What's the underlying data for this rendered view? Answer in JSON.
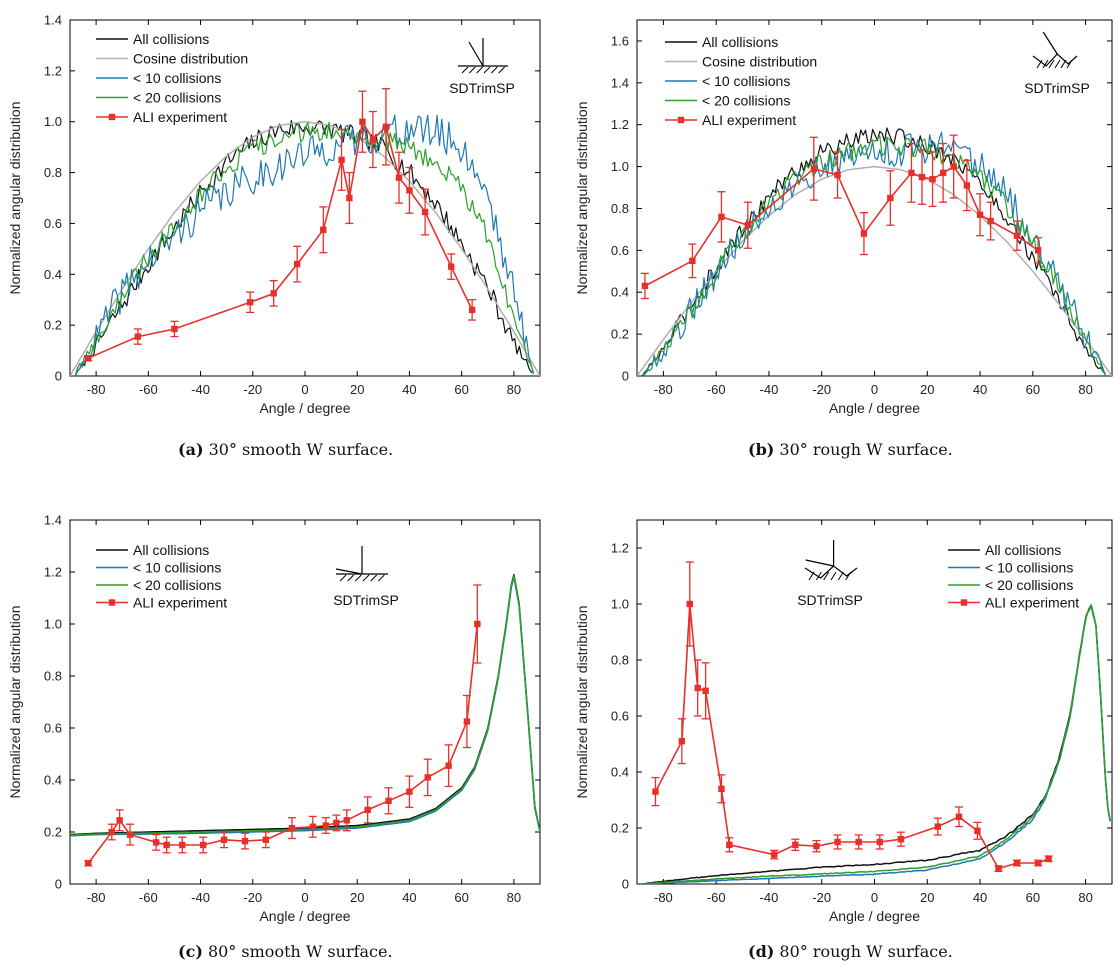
{
  "chart_data": [
    {
      "type": "line",
      "xlabel": "Angle / degree",
      "ylabel": "Normalized angular distribution",
      "xlim": [
        -90,
        90
      ],
      "ylim": [
        0,
        1.4
      ],
      "xticks": [
        -80,
        -60,
        -40,
        -20,
        0,
        20,
        40,
        60,
        80
      ],
      "yticks": [
        0,
        0.2,
        0.4,
        0.6,
        0.8,
        1.0,
        1.2,
        1.4
      ],
      "ytick_labels": [
        "0",
        "0.2",
        "0.4",
        "0.6",
        "0.8",
        "1.0",
        "1.2",
        "1.4"
      ],
      "legend_position": "top-left",
      "sim_label": "SDTrimSP",
      "caption": {
        "letter": "(a)",
        "text": " 30° smooth W surface."
      },
      "series": [
        {
          "name": "All collisions",
          "color": "#111111",
          "noise": 0.04,
          "x": [
            -88,
            -80,
            -70,
            -60,
            -50,
            -40,
            -30,
            -20,
            -10,
            0,
            10,
            20,
            30,
            40,
            50,
            60,
            70,
            80,
            88
          ],
          "y": [
            0.0,
            0.12,
            0.28,
            0.44,
            0.58,
            0.72,
            0.84,
            0.92,
            0.97,
            0.98,
            0.97,
            0.94,
            0.9,
            0.8,
            0.68,
            0.52,
            0.35,
            0.13,
            0.0
          ]
        },
        {
          "name": "Cosine distribution",
          "color": "#b0b0b0",
          "noise": 0,
          "x": [
            -90,
            -80,
            -70,
            -60,
            -50,
            -40,
            -30,
            -20,
            -10,
            0,
            10,
            20,
            30,
            40,
            50,
            60,
            70,
            80,
            90
          ],
          "y": [
            0.0,
            0.174,
            0.342,
            0.5,
            0.643,
            0.766,
            0.866,
            0.94,
            0.985,
            1.0,
            0.985,
            0.94,
            0.866,
            0.766,
            0.643,
            0.5,
            0.342,
            0.174,
            0.0
          ]
        },
        {
          "name": "< 10 collisions",
          "color": "#1f78b4",
          "noise": 0.07,
          "x": [
            -88,
            -80,
            -70,
            -60,
            -50,
            -40,
            -30,
            -20,
            -10,
            0,
            10,
            20,
            30,
            40,
            50,
            60,
            70,
            80,
            88
          ],
          "y": [
            0.0,
            0.15,
            0.33,
            0.45,
            0.55,
            0.65,
            0.72,
            0.78,
            0.83,
            0.87,
            0.9,
            0.93,
            0.95,
            0.97,
            0.96,
            0.9,
            0.72,
            0.32,
            0.0
          ]
        },
        {
          "name": "< 20 collisions",
          "color": "#2ca02c",
          "noise": 0.04,
          "x": [
            -88,
            -80,
            -70,
            -60,
            -50,
            -40,
            -30,
            -20,
            -10,
            0,
            10,
            20,
            30,
            40,
            50,
            60,
            70,
            80,
            88
          ],
          "y": [
            0.0,
            0.14,
            0.32,
            0.47,
            0.6,
            0.72,
            0.82,
            0.89,
            0.93,
            0.96,
            0.96,
            0.95,
            0.93,
            0.9,
            0.84,
            0.74,
            0.55,
            0.22,
            0.0
          ]
        },
        {
          "name": "ALI experiment",
          "color": "#e8302a",
          "x": [
            -83,
            -64,
            -50,
            -21,
            -12,
            -3,
            7,
            14,
            17,
            22,
            26,
            31,
            36,
            40,
            46,
            56,
            64
          ],
          "y": [
            0.07,
            0.155,
            0.185,
            0.29,
            0.325,
            0.44,
            0.575,
            0.85,
            0.7,
            1.0,
            0.93,
            0.98,
            0.78,
            0.73,
            0.645,
            0.43,
            0.26
          ],
          "err": [
            0.01,
            0.03,
            0.03,
            0.04,
            0.05,
            0.07,
            0.09,
            0.12,
            0.1,
            0.12,
            0.11,
            0.15,
            0.1,
            0.09,
            0.09,
            0.05,
            0.04
          ]
        }
      ]
    },
    {
      "type": "line",
      "xlabel": "Angle / degree",
      "ylabel": "Normalized angular distribution",
      "xlim": [
        -90,
        90
      ],
      "ylim": [
        0,
        1.7
      ],
      "xticks": [
        -80,
        -60,
        -40,
        -20,
        0,
        20,
        40,
        60,
        80
      ],
      "yticks": [
        0,
        0.2,
        0.4,
        0.6,
        0.8,
        1.0,
        1.2,
        1.4,
        1.6
      ],
      "ytick_labels": [
        "0",
        "0.2",
        "0.4",
        "0.6",
        "0.8",
        "1.0",
        "1.2",
        "1.4",
        "1.6"
      ],
      "legend_position": "top-left",
      "sim_label": "SDTrimSP",
      "caption": {
        "letter": "(b)",
        "text": " 30° rough W surface."
      },
      "series": [
        {
          "name": "All collisions",
          "color": "#111111",
          "noise": 0.04,
          "x": [
            -88,
            -80,
            -70,
            -60,
            -50,
            -40,
            -30,
            -20,
            -10,
            0,
            10,
            20,
            30,
            40,
            50,
            60,
            70,
            80,
            88
          ],
          "y": [
            0.0,
            0.13,
            0.33,
            0.52,
            0.7,
            0.86,
            0.98,
            1.07,
            1.12,
            1.15,
            1.14,
            1.1,
            1.04,
            0.92,
            0.76,
            0.56,
            0.36,
            0.12,
            0.0
          ]
        },
        {
          "name": "Cosine distribution",
          "color": "#b0b0b0",
          "noise": 0,
          "x": [
            -90,
            -80,
            -70,
            -60,
            -50,
            -40,
            -30,
            -20,
            -10,
            0,
            10,
            20,
            30,
            40,
            50,
            60,
            70,
            80,
            90
          ],
          "y": [
            0.0,
            0.174,
            0.342,
            0.5,
            0.643,
            0.766,
            0.866,
            0.94,
            0.985,
            1.0,
            0.985,
            0.94,
            0.866,
            0.766,
            0.643,
            0.5,
            0.342,
            0.174,
            0.0
          ]
        },
        {
          "name": "< 10 collisions",
          "color": "#1f78b4",
          "noise": 0.08,
          "x": [
            -88,
            -80,
            -70,
            -60,
            -50,
            -40,
            -30,
            -20,
            -10,
            0,
            10,
            20,
            30,
            40,
            50,
            60,
            70,
            80,
            88
          ],
          "y": [
            0.0,
            0.12,
            0.3,
            0.5,
            0.68,
            0.82,
            0.92,
            1.0,
            1.04,
            1.07,
            1.08,
            1.09,
            1.1,
            1.0,
            0.86,
            0.66,
            0.44,
            0.18,
            0.0
          ]
        },
        {
          "name": "< 20 collisions",
          "color": "#2ca02c",
          "noise": 0.05,
          "x": [
            -88,
            -80,
            -70,
            -60,
            -50,
            -40,
            -30,
            -20,
            -10,
            0,
            10,
            20,
            30,
            40,
            50,
            60,
            70,
            80,
            88
          ],
          "y": [
            0.0,
            0.12,
            0.31,
            0.5,
            0.68,
            0.83,
            0.94,
            1.02,
            1.07,
            1.1,
            1.1,
            1.08,
            1.05,
            0.96,
            0.82,
            0.62,
            0.42,
            0.16,
            0.0
          ]
        },
        {
          "name": "ALI experiment",
          "color": "#e8302a",
          "x": [
            -87,
            -69,
            -58,
            -48,
            -23,
            -14,
            -4,
            6,
            14,
            18,
            22,
            26,
            30,
            35,
            40,
            44,
            54,
            62
          ],
          "y": [
            0.43,
            0.55,
            0.76,
            0.72,
            0.99,
            0.96,
            0.68,
            0.85,
            0.97,
            0.95,
            0.94,
            0.97,
            1.0,
            0.91,
            0.77,
            0.74,
            0.67,
            0.6
          ],
          "err": [
            0.06,
            0.08,
            0.12,
            0.11,
            0.15,
            0.11,
            0.1,
            0.13,
            0.14,
            0.13,
            0.13,
            0.14,
            0.15,
            0.12,
            0.1,
            0.09,
            0.07,
            0.06
          ]
        }
      ]
    },
    {
      "type": "line",
      "xlabel": "Angle / degree",
      "ylabel": "Normalized angular distribution",
      "xlim": [
        -90,
        90
      ],
      "ylim": [
        0,
        1.4
      ],
      "xticks": [
        -80,
        -60,
        -40,
        -20,
        0,
        20,
        40,
        60,
        80
      ],
      "yticks": [
        0,
        0.2,
        0.4,
        0.6,
        0.8,
        1.0,
        1.2,
        1.4
      ],
      "ytick_labels": [
        "0",
        "0.2",
        "0.4",
        "0.6",
        "0.8",
        "1.0",
        "1.2",
        "1.4"
      ],
      "legend_position": "top-left",
      "sim_label": "SDTrimSP",
      "caption": {
        "letter": "(c)",
        "text": " 80° smooth W surface."
      },
      "series": [
        {
          "name": "All collisions",
          "color": "#111111",
          "noise": 0,
          "x": [
            -90,
            -80,
            -60,
            -40,
            -20,
            0,
            20,
            40,
            50,
            60,
            65,
            70,
            74,
            77,
            79,
            80,
            82,
            85,
            88,
            90
          ],
          "y": [
            0.19,
            0.195,
            0.2,
            0.205,
            0.21,
            0.215,
            0.225,
            0.25,
            0.29,
            0.37,
            0.45,
            0.6,
            0.8,
            1.0,
            1.15,
            1.19,
            1.08,
            0.7,
            0.3,
            0.2
          ]
        },
        {
          "name": "< 10 collisions",
          "color": "#1f78b4",
          "noise": 0,
          "x": [
            -90,
            -80,
            -60,
            -40,
            -20,
            0,
            20,
            40,
            50,
            60,
            65,
            70,
            74,
            77,
            79,
            80,
            82,
            85,
            88,
            90
          ],
          "y": [
            0.185,
            0.19,
            0.192,
            0.195,
            0.2,
            0.205,
            0.215,
            0.24,
            0.28,
            0.36,
            0.44,
            0.59,
            0.79,
            0.99,
            1.14,
            1.18,
            1.07,
            0.69,
            0.29,
            0.2
          ]
        },
        {
          "name": "< 20 collisions",
          "color": "#2ca02c",
          "noise": 0,
          "x": [
            -90,
            -80,
            -60,
            -40,
            -20,
            0,
            20,
            40,
            50,
            60,
            65,
            70,
            74,
            77,
            79,
            80,
            82,
            85,
            88,
            90
          ],
          "y": [
            0.188,
            0.192,
            0.196,
            0.2,
            0.205,
            0.21,
            0.22,
            0.245,
            0.285,
            0.365,
            0.445,
            0.595,
            0.795,
            0.995,
            1.145,
            1.185,
            1.075,
            0.695,
            0.295,
            0.2
          ]
        },
        {
          "name": "ALI experiment",
          "color": "#e8302a",
          "x": [
            -83,
            -74,
            -71,
            -67,
            -57,
            -53,
            -47,
            -39,
            -31,
            -23,
            -15,
            -5,
            3,
            8,
            12,
            16,
            24,
            32,
            40,
            47,
            55,
            62,
            66
          ],
          "y": [
            0.08,
            0.2,
            0.245,
            0.19,
            0.16,
            0.15,
            0.15,
            0.15,
            0.17,
            0.165,
            0.17,
            0.215,
            0.22,
            0.225,
            0.235,
            0.245,
            0.285,
            0.32,
            0.355,
            0.41,
            0.455,
            0.625,
            1.0
          ],
          "err": [
            0.01,
            0.03,
            0.04,
            0.04,
            0.03,
            0.03,
            0.03,
            0.03,
            0.03,
            0.03,
            0.03,
            0.04,
            0.04,
            0.03,
            0.03,
            0.04,
            0.05,
            0.05,
            0.06,
            0.07,
            0.08,
            0.1,
            0.15
          ]
        }
      ]
    },
    {
      "type": "line",
      "xlabel": "Angle / degree",
      "ylabel": "Normalized angular distribution",
      "xlim": [
        -90,
        90
      ],
      "ylim": [
        0,
        1.3
      ],
      "xticks": [
        -80,
        -60,
        -40,
        -20,
        0,
        20,
        40,
        60,
        80
      ],
      "yticks": [
        0,
        0.2,
        0.4,
        0.6,
        0.8,
        1.0,
        1.2
      ],
      "ytick_labels": [
        "0",
        "0.2",
        "0.4",
        "0.6",
        "0.8",
        "1.0",
        "1.2"
      ],
      "legend_position": "top-right",
      "sim_label": "SDTrimSP",
      "caption": {
        "letter": "(d)",
        "text": " 80° rough W surface."
      },
      "series": [
        {
          "name": "All collisions",
          "color": "#111111",
          "noise": 0.004,
          "x": [
            -88,
            -80,
            -60,
            -40,
            -20,
            0,
            20,
            40,
            50,
            60,
            65,
            70,
            74,
            77,
            80,
            82,
            84,
            86,
            88,
            90
          ],
          "y": [
            0.0,
            0.01,
            0.03,
            0.045,
            0.06,
            0.07,
            0.085,
            0.12,
            0.17,
            0.25,
            0.32,
            0.45,
            0.6,
            0.78,
            0.95,
            1.0,
            0.92,
            0.62,
            0.3,
            0.18
          ]
        },
        {
          "name": "< 10 collisions",
          "color": "#1f78b4",
          "noise": 0.004,
          "x": [
            -88,
            -80,
            -60,
            -40,
            -20,
            0,
            20,
            40,
            50,
            60,
            65,
            70,
            74,
            77,
            80,
            82,
            84,
            86,
            88,
            90
          ],
          "y": [
            0.0,
            0.004,
            0.012,
            0.02,
            0.028,
            0.035,
            0.05,
            0.09,
            0.15,
            0.23,
            0.31,
            0.44,
            0.59,
            0.77,
            0.95,
            1.0,
            0.92,
            0.62,
            0.3,
            0.18
          ]
        },
        {
          "name": "< 20 collisions",
          "color": "#2ca02c",
          "noise": 0.004,
          "x": [
            -88,
            -80,
            -60,
            -40,
            -20,
            0,
            20,
            40,
            50,
            60,
            65,
            70,
            74,
            77,
            80,
            82,
            84,
            86,
            88,
            90
          ],
          "y": [
            0.0,
            0.006,
            0.018,
            0.028,
            0.036,
            0.045,
            0.06,
            0.1,
            0.16,
            0.24,
            0.315,
            0.445,
            0.595,
            0.775,
            0.95,
            1.0,
            0.92,
            0.62,
            0.3,
            0.18
          ]
        },
        {
          "name": "ALI experiment",
          "color": "#e8302a",
          "x": [
            -83,
            -73,
            -70,
            -67,
            -64,
            -58,
            -55,
            -38,
            -30,
            -22,
            -14,
            -6,
            2,
            10,
            24,
            32,
            39,
            47,
            54,
            62,
            66
          ],
          "y": [
            0.33,
            0.51,
            1.0,
            0.7,
            0.69,
            0.34,
            0.14,
            0.105,
            0.14,
            0.135,
            0.15,
            0.15,
            0.15,
            0.16,
            0.205,
            0.24,
            0.19,
            0.055,
            0.075,
            0.075,
            0.09
          ],
          "err": [
            0.05,
            0.08,
            0.15,
            0.1,
            0.1,
            0.05,
            0.025,
            0.015,
            0.02,
            0.02,
            0.025,
            0.025,
            0.025,
            0.025,
            0.03,
            0.035,
            0.03,
            0.01,
            0.01,
            0.01,
            0.01
          ]
        }
      ]
    }
  ]
}
